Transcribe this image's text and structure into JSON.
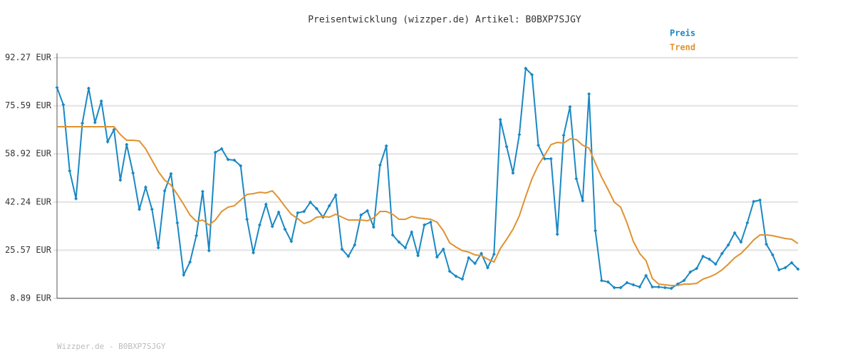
{
  "chart_data": {
    "type": "line",
    "title": "Preisentwicklung (wizzper.de) Artikel: B0BXP7SJGY",
    "footer": "Wizzper.de - B0BXP7SJGY",
    "categories": [
      null,
      null,
      null,
      null,
      null,
      null,
      null,
      null,
      null,
      null,
      null,
      null,
      null,
      null,
      null,
      null,
      null,
      null,
      null,
      null,
      null,
      null,
      null,
      null,
      null,
      null,
      null,
      null,
      null,
      null,
      null,
      null,
      null,
      null,
      null,
      null,
      null,
      null,
      null,
      null,
      null,
      null,
      null,
      null,
      null,
      null,
      null,
      null,
      null,
      null,
      null,
      null,
      null,
      null,
      null,
      null,
      null,
      null,
      null,
      null,
      null,
      null,
      null,
      null,
      null,
      null,
      null,
      null,
      null,
      null,
      null,
      null,
      null,
      null,
      null,
      null,
      null,
      null,
      null,
      null,
      null,
      null,
      null,
      null,
      null,
      null,
      null,
      null,
      null,
      null,
      null,
      null,
      null,
      null,
      null,
      null,
      null,
      null,
      null,
      null,
      null,
      null,
      null,
      null,
      null,
      null,
      null,
      null,
      null,
      null,
      null,
      null,
      null,
      null,
      null,
      null,
      null,
      null
    ],
    "series": [
      {
        "name": "Preis",
        "color": "#1a88c4",
        "markers": true,
        "values": [
          81.91,
          75.99,
          53.05,
          43.43,
          69.57,
          81.66,
          69.82,
          77.22,
          63.16,
          67.35,
          49.84,
          62.17,
          52.31,
          39.72,
          47.37,
          39.72,
          26.4,
          46.14,
          52.06,
          35.04,
          17.03,
          21.47,
          30.59,
          45.89,
          25.41,
          59.46,
          60.69,
          56.99,
          56.75,
          54.77,
          36.27,
          24.67,
          34.3,
          41.45,
          33.8,
          38.74,
          32.82,
          28.62,
          38.49,
          38.98,
          42.19,
          39.97,
          37.01,
          40.96,
          44.66,
          25.91,
          23.44,
          27.39,
          37.75,
          39.23,
          33.56,
          55.02,
          61.68,
          30.84,
          28.37,
          26.4,
          31.83,
          23.69,
          34.3,
          35.28,
          23.19,
          25.91,
          18.26,
          16.53,
          15.55,
          22.95,
          20.97,
          24.43,
          19.49,
          24.18,
          70.81,
          61.43,
          52.31,
          65.63,
          88.57,
          86.35,
          61.93,
          57.24,
          57.24,
          31.09,
          65.38,
          75.25,
          50.33,
          42.68,
          79.69,
          32.32,
          15.05,
          14.56,
          12.59,
          12.59,
          14.31,
          13.57,
          12.83,
          16.78,
          12.83,
          12.83,
          12.59,
          12.34,
          13.82,
          15.05,
          18.01,
          19.25,
          23.44,
          22.45,
          20.73,
          24.43,
          27.39,
          31.58,
          28.37,
          35.04,
          42.44,
          42.93,
          27.63,
          23.93,
          18.75,
          19.49,
          21.22,
          19.0
        ]
      },
      {
        "name": "Trend",
        "color": "#e0922f",
        "markers": false,
        "values": [
          68.34,
          68.34,
          68.34,
          68.34,
          68.34,
          68.34,
          68.34,
          68.34,
          68.34,
          68.34,
          65.63,
          63.65,
          63.65,
          63.41,
          60.69,
          56.75,
          52.8,
          49.84,
          48.11,
          44.9,
          41.45,
          37.75,
          35.53,
          36.02,
          34.3,
          36.02,
          38.98,
          40.46,
          40.96,
          42.93,
          44.9,
          45.15,
          45.64,
          45.4,
          46.14,
          43.67,
          40.71,
          38.0,
          36.52,
          34.79,
          35.53,
          37.01,
          37.26,
          37.01,
          38.0,
          37.01,
          36.02,
          36.02,
          36.02,
          35.78,
          36.76,
          38.98,
          38.98,
          38.0,
          36.27,
          36.27,
          37.26,
          36.76,
          36.52,
          36.27,
          35.28,
          32.32,
          28.13,
          26.65,
          25.41,
          24.92,
          23.93,
          23.69,
          22.45,
          21.47,
          26.15,
          29.36,
          32.82,
          37.5,
          44.16,
          50.33,
          55.02,
          58.47,
          62.17,
          62.91,
          62.67,
          64.15,
          63.9,
          61.93,
          60.94,
          55.76,
          50.82,
          46.63,
          42.19,
          40.46,
          35.04,
          28.62,
          24.43,
          21.96,
          15.79,
          13.82,
          13.57,
          13.33,
          13.33,
          13.82,
          13.82,
          14.07,
          15.55,
          16.29,
          17.27,
          18.75,
          20.73,
          22.95,
          24.43,
          26.65,
          29.11,
          30.84,
          30.84,
          30.59,
          30.1,
          29.61,
          29.36,
          27.88
        ]
      }
    ],
    "ylim": [
      8.89,
      92.27
    ],
    "yticks": [
      {
        "value": 8.89,
        "label": "8.89 EUR"
      },
      {
        "value": 25.57,
        "label": "25.57 EUR"
      },
      {
        "value": 42.24,
        "label": "42.24 EUR"
      },
      {
        "value": 58.92,
        "label": "58.92 EUR"
      },
      {
        "value": 75.59,
        "label": "75.59 EUR"
      },
      {
        "value": 92.27,
        "label": "92.27 EUR"
      }
    ],
    "grid": true,
    "legend": "top-right"
  }
}
